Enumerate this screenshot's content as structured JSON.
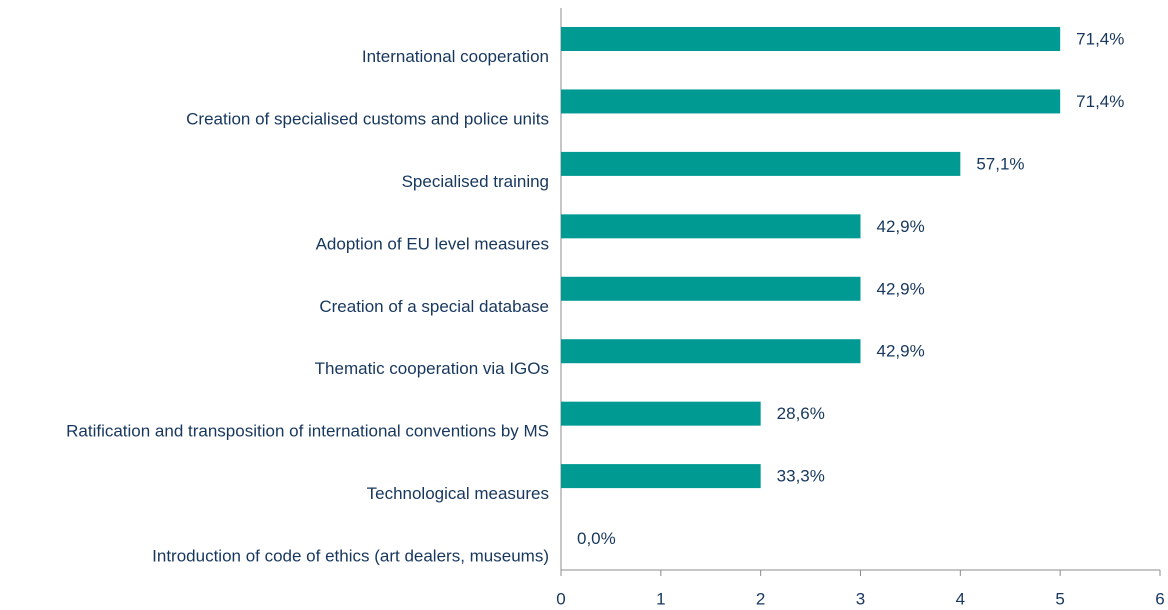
{
  "chart_data": {
    "type": "bar",
    "orientation": "horizontal",
    "categories": [
      "International cooperation",
      "Creation of specialised customs and police units",
      "Specialised training",
      "Adoption of EU level measures",
      "Creation of a special database",
      "Thematic cooperation via IGOs",
      "Ratification and transposition of international conventions by MS",
      "Technological measures",
      "Introduction of code of ethics (art dealers, museums)"
    ],
    "values": [
      5,
      5,
      4,
      3,
      3,
      3,
      2,
      2,
      0
    ],
    "data_labels": [
      {
        "value": 71.4,
        "label": "71,4%"
      },
      {
        "value": 71.4,
        "label": "71,4%"
      },
      {
        "value": 57.1,
        "label": "57,1%"
      },
      {
        "value": 42.9,
        "label": "42,9%"
      },
      {
        "value": 42.9,
        "label": "42,9%"
      },
      {
        "value": 42.9,
        "label": "42,9%"
      },
      {
        "value": 28.6,
        "label": "28,6%"
      },
      {
        "value": 33.3,
        "label": "33,3%"
      },
      {
        "value": 0.0,
        "label": "0,0%"
      }
    ],
    "color": "#009a93",
    "xlim": [
      0,
      6
    ],
    "xticks": [
      0,
      1,
      2,
      3,
      4,
      5,
      6
    ],
    "grid": false
  }
}
